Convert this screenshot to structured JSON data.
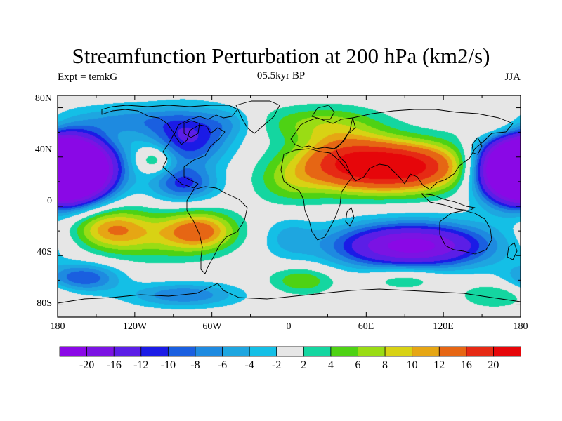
{
  "header": {
    "title": "Streamfunction Perturbation at 200 hPa (km2/s)",
    "left_label": "Expt = temkG",
    "center_label": "05.5kyr BP",
    "right_label": "JJA"
  },
  "map": {
    "projection": "cylindrical-equidistant",
    "lon_range": [
      -180,
      180
    ],
    "lat_range": [
      -90,
      90
    ],
    "lat_ticks": [
      {
        "value": 80,
        "label": "80N"
      },
      {
        "value": 40,
        "label": "40N"
      },
      {
        "value": 0,
        "label": "0"
      },
      {
        "value": -40,
        "label": "40S"
      },
      {
        "value": -80,
        "label": "80S"
      }
    ],
    "lon_ticks": [
      {
        "value": -180,
        "label": "180"
      },
      {
        "value": -120,
        "label": "120W"
      },
      {
        "value": -60,
        "label": "60W"
      },
      {
        "value": 0,
        "label": "0"
      },
      {
        "value": 60,
        "label": "60E"
      },
      {
        "value": 120,
        "label": "120E"
      },
      {
        "value": 180,
        "label": "180"
      }
    ],
    "centers": [
      {
        "lon": 82,
        "lat": 32,
        "v": 24,
        "sx": 40,
        "sy": 14
      },
      {
        "lon": 40,
        "lat": 42,
        "v": 8,
        "sx": 26,
        "sy": 18
      },
      {
        "lon": 0,
        "lat": 20,
        "v": 5,
        "sx": 20,
        "sy": 14
      },
      {
        "lon": 20,
        "lat": 68,
        "v": 5,
        "sx": 35,
        "sy": 10
      },
      {
        "lon": 95,
        "lat": -32,
        "v": -22,
        "sx": 42,
        "sy": 13
      },
      {
        "lon": -165,
        "lat": 30,
        "v": -22,
        "sx": 22,
        "sy": 17
      },
      {
        "lon": 180,
        "lat": 30,
        "v": -22,
        "sx": 22,
        "sy": 17
      },
      {
        "lon": -180,
        "lat": 30,
        "v": -22,
        "sx": 22,
        "sy": 17
      },
      {
        "lon": -78,
        "lat": 55,
        "v": -12,
        "sx": 22,
        "sy": 16
      },
      {
        "lon": -82,
        "lat": 18,
        "v": -10,
        "sx": 18,
        "sy": 10
      },
      {
        "lon": -125,
        "lat": 70,
        "v": -6,
        "sx": 30,
        "sy": 9
      },
      {
        "lon": -45,
        "lat": 68,
        "v": -4,
        "sx": 15,
        "sy": 9
      },
      {
        "lon": -138,
        "lat": -18,
        "v": 11,
        "sx": 22,
        "sy": 12
      },
      {
        "lon": -70,
        "lat": -20,
        "v": 13,
        "sx": 20,
        "sy": 11
      },
      {
        "lon": -105,
        "lat": -28,
        "v": 4,
        "sx": 30,
        "sy": 14
      },
      {
        "lon": -160,
        "lat": -58,
        "v": -10,
        "sx": 20,
        "sy": 8
      },
      {
        "lon": -82,
        "lat": -72,
        "v": -8,
        "sx": 30,
        "sy": 7
      },
      {
        "lon": 10,
        "lat": -60,
        "v": 6,
        "sx": 18,
        "sy": 8
      },
      {
        "lon": 90,
        "lat": -58,
        "v": 5,
        "sx": 22,
        "sy": 7
      },
      {
        "lon": 160,
        "lat": -72,
        "v": 4,
        "sx": 20,
        "sy": 8
      },
      {
        "lon": -105,
        "lat": 38,
        "v": 7,
        "sx": 10,
        "sy": 8
      },
      {
        "lon": 0,
        "lat": -25,
        "v": -4,
        "sx": 14,
        "sy": 12
      },
      {
        "lon": 160,
        "lat": 65,
        "v": 4,
        "sx": 18,
        "sy": 8
      }
    ]
  },
  "colorbar": {
    "labels": [
      "-20",
      "-16",
      "-12",
      "-10",
      "-8",
      "-6",
      "-4",
      "-2",
      "2",
      "4",
      "6",
      "8",
      "10",
      "12",
      "16",
      "20"
    ],
    "levels": [
      -20,
      -16,
      -12,
      -10,
      -8,
      -6,
      -4,
      -2,
      2,
      4,
      6,
      8,
      10,
      12,
      16,
      20
    ],
    "colors": [
      "#8a08e6",
      "#7b13e3",
      "#5b1ee6",
      "#1b1be6",
      "#1a5fe0",
      "#1e8ae0",
      "#1ea6e0",
      "#14bfe6",
      "#e6e6e6",
      "#14d6a0",
      "#4ed214",
      "#9adc14",
      "#d8d214",
      "#e6a614",
      "#e66614",
      "#e62a14",
      "#e6060a"
    ]
  }
}
